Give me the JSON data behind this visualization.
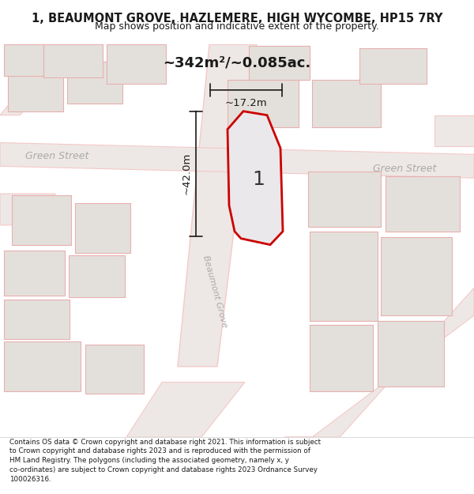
{
  "title": "1, BEAUMONT GROVE, HAZLEMERE, HIGH WYCOMBE, HP15 7RY",
  "subtitle": "Map shows position and indicative extent of the property.",
  "area_label": "~342m²/~0.085ac.",
  "width_label": "~17.2m",
  "height_label": "~42.0m",
  "property_number": "1",
  "street_label1": "Green Street",
  "street_label2": "Green Street",
  "street_label3": "Beaumont Grove",
  "footer_lines": [
    "Contains OS data © Crown copyright and database right 2021. This information is subject",
    "to Crown copyright and database rights 2023 and is reproduced with the permission of",
    "HM Land Registry. The polygons (including the associated geometry, namely x, y",
    "co-ordinates) are subject to Crown copyright and database rights 2023 Ordnance Survey",
    "100026316."
  ],
  "map_bg": "#f0efed",
  "road_color": "#f5c8c8",
  "building_color": "#e3e0db",
  "building_edge_color": "#e8b0b0",
  "property_fill": "#eae8ea",
  "property_edge_color": "#cc0000",
  "dim_color": "#1a1a1a",
  "street_text_color": "#aaaaaa",
  "title_color": "#1a1a1a",
  "footer_color": "#1a1a1a"
}
